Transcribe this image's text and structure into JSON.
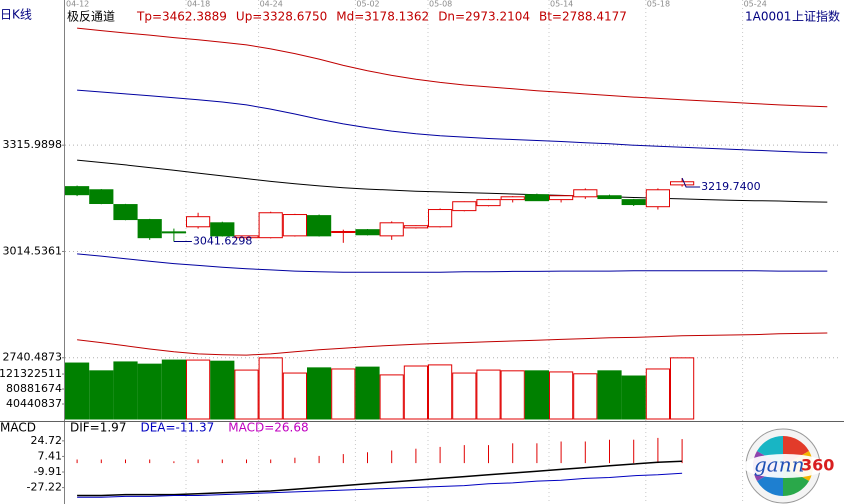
{
  "header": {
    "period": "日K线",
    "indicator": "极反通道",
    "code": "1A0001",
    "name": "上证指数"
  },
  "watermark": {
    "brand": "gann",
    "number": "360"
  },
  "chart_data": [
    {
      "type": "candlestick",
      "categories": [
        "04-12",
        null,
        null,
        null,
        null,
        "04-18",
        null,
        null,
        "04-24",
        null,
        null,
        null,
        "05-02",
        null,
        null,
        "05-08",
        null,
        null,
        null,
        null,
        "05-14",
        null,
        null,
        null,
        "05-18",
        null,
        null,
        null,
        "05-24",
        null,
        null,
        null
      ],
      "open": [
        3195,
        3186,
        3144,
        3102,
        3068,
        3082,
        3093,
        3052,
        3052,
        3057,
        3113,
        3068,
        3074,
        3057,
        3079,
        3082,
        3127,
        3141,
        3158,
        3172,
        3158,
        3166,
        3169,
        3158,
        3138,
        3200,
        null,
        null,
        null,
        null,
        null,
        null
      ],
      "high": [
        3198,
        3188,
        3146,
        3104,
        3077,
        3121,
        3096,
        3058,
        3124,
        3118,
        3116,
        3074,
        3076,
        3097,
        3086,
        3133,
        3153,
        3160,
        3168,
        3175,
        3170,
        3190,
        3172,
        3160,
        3190,
        3219.74,
        null,
        null,
        null,
        null,
        null,
        null
      ],
      "low": [
        3168,
        3145,
        3100,
        3046,
        3041.6298,
        3077,
        3055,
        3046,
        3050,
        3055,
        3055,
        3038,
        3058,
        3046,
        3077,
        3080,
        3125,
        3139,
        3150,
        3155,
        3150,
        3160,
        3160,
        3140,
        3130,
        3195,
        null,
        null,
        null,
        null,
        null,
        null
      ],
      "close": [
        3172,
        3147,
        3102,
        3052,
        3066,
        3110,
        3057,
        3057,
        3121,
        3116,
        3057,
        3069,
        3060,
        3093,
        3085,
        3130,
        3152,
        3158,
        3166,
        3155,
        3169,
        3186,
        3161,
        3144,
        3186,
        3209,
        null,
        null,
        null,
        null,
        null,
        null
      ],
      "up_color": "#e00000",
      "down_color": "#008000",
      "annotations": [
        {
          "value": 3041.6298,
          "label": "3041.6298"
        },
        {
          "value": 3219.74,
          "label": "3219.7400"
        }
      ],
      "series": [
        {
          "name": "Tp=3462.3889",
          "color": "#c00000",
          "values": [
            3683,
            3675,
            3667,
            3660,
            3652,
            3645,
            3637,
            3628,
            3615,
            3600,
            3582,
            3562,
            3545,
            3530,
            3518,
            3508,
            3500,
            3494,
            3488,
            3482,
            3477,
            3472,
            3467,
            3462,
            3458,
            3454,
            3450,
            3446,
            3442,
            3438,
            3435,
            3432
          ]
        },
        {
          "name": "Up=3328.6750",
          "color": "#0000a0",
          "values": [
            3484,
            3478,
            3472,
            3466,
            3460,
            3454,
            3447,
            3438,
            3425,
            3410,
            3394,
            3380,
            3368,
            3358,
            3350,
            3344,
            3340,
            3336,
            3333,
            3330,
            3327,
            3323,
            3320,
            3316,
            3313,
            3310,
            3307,
            3304,
            3301,
            3298,
            3295,
            3293
          ]
        },
        {
          "name": "Md=3178.1362",
          "color": "#000000",
          "values": [
            3272,
            3265,
            3258,
            3250,
            3242,
            3234,
            3226,
            3218,
            3210,
            3203,
            3197,
            3192,
            3188,
            3185,
            3182,
            3180,
            3178,
            3176,
            3174,
            3172,
            3170,
            3168,
            3166,
            3164,
            3162,
            3160,
            3158,
            3156,
            3155,
            3154,
            3152,
            3151
          ]
        },
        {
          "name": "Dn=2973.2104",
          "color": "#0000a0",
          "values": [
            3008,
            3002,
            2995,
            2988,
            2982,
            2977,
            2972,
            2968,
            2965,
            2962,
            2960,
            2959,
            2959,
            2959,
            2959,
            2959,
            2960,
            2960,
            2961,
            2961,
            2962,
            2962,
            2962,
            2963,
            2963,
            2963,
            2963,
            2963,
            2963,
            2962,
            2962,
            2962
          ]
        },
        {
          "name": "Bt=2788.4177",
          "color": "#c00000",
          "values": [
            2785,
            2778,
            2770,
            2762,
            2755,
            2750,
            2748,
            2747,
            2750,
            2755,
            2760,
            2764,
            2768,
            2771,
            2774,
            2776,
            2778,
            2780,
            2782,
            2784,
            2786,
            2788,
            2790,
            2791,
            2793,
            2795,
            2796,
            2797,
            2798,
            2800,
            2801,
            2802
          ]
        }
      ],
      "ylim": [
        2730,
        3730
      ],
      "yticks": [
        3315.9898,
        3014.5361,
        2740.4873
      ],
      "log_scale": true,
      "grid": true
    },
    {
      "type": "volume",
      "values": [
        151000000,
        130000000,
        154000000,
        148000000,
        159000000,
        159000000,
        156000000,
        132000000,
        165000000,
        124000000,
        138000000,
        135000000,
        140000000,
        119000000,
        143000000,
        146000000,
        124000000,
        132000000,
        130000000,
        130000000,
        127000000,
        122000000,
        130000000,
        116000000,
        135000000,
        165000000
      ],
      "ylim": [
        0,
        170000000
      ],
      "yticks": [
        121322511,
        80881674,
        40440837
      ]
    },
    {
      "type": "macd",
      "title": "MACD",
      "series": [
        {
          "name": "DIF=1.97",
          "color": "#000000",
          "values": [
            -36,
            -36,
            -35,
            -35,
            -35,
            -34,
            -33,
            -32,
            -31,
            -29,
            -27,
            -25,
            -23,
            -21,
            -19,
            -17,
            -15,
            -13,
            -11,
            -9,
            -7,
            -5,
            -3,
            -1,
            1,
            1.97
          ]
        },
        {
          "name": "DEA=-11.37",
          "color": "#0000c0",
          "values": [
            -38,
            -38,
            -37,
            -37,
            -36,
            -36,
            -35,
            -34,
            -33,
            -32,
            -31,
            -30,
            -29,
            -28,
            -27,
            -26,
            -25,
            -23,
            -22,
            -20,
            -19,
            -17,
            -16,
            -14,
            -13,
            -11.37
          ]
        },
        {
          "name": "MACD=26.68",
          "color": "#c000c0",
          "values": [
            4,
            4,
            4,
            4,
            2,
            4,
            4,
            4,
            4,
            6,
            8,
            10,
            12,
            14,
            16,
            18,
            20,
            20,
            22,
            22,
            24,
            24,
            26,
            26,
            28,
            26.68
          ]
        }
      ],
      "up_color": "#e00000",
      "down_color": "#008000",
      "ylim": [
        -41,
        39
      ],
      "yticks": [
        24.72,
        7.41,
        -9.91,
        -27.22
      ]
    }
  ]
}
